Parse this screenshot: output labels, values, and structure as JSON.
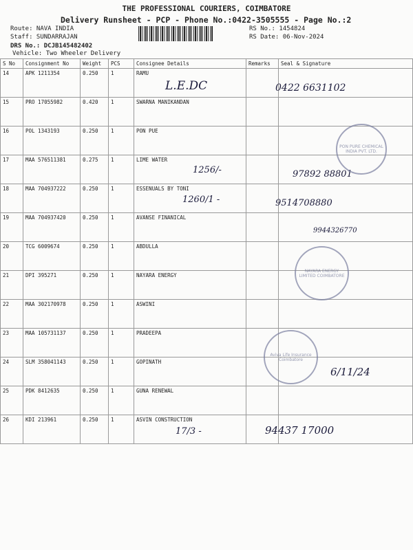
{
  "header": {
    "company": "THE PROFESSIONAL COURIERS, COIMBATORE",
    "subtitle": "Delivery Runsheet - PCP - Phone No.:0422-3505555 - Page No.:2",
    "route": "Route: NAVA INDIA",
    "staff": "Staff: SUNDARRAJAN",
    "drs": "DRS No.: DCJB145482402",
    "vehicle": "Vehicle: Two Wheeler Delivery",
    "rs_no": "RS No.: 1454824",
    "rs_date": "RS Date: 06-Nov-2024"
  },
  "table": {
    "columns": [
      "S No",
      "Consignment No",
      "Weight",
      "PCS",
      "Consignee Details",
      "Remarks",
      "Seal & Signature"
    ],
    "rows": [
      [
        "14",
        "APK 1211354",
        "0.250",
        "1",
        "RAMU"
      ],
      [
        "15",
        "PRO 17055982",
        "0.420",
        "1",
        "SWARNA MANIKANDAN"
      ],
      [
        "16",
        "POL 1343193",
        "0.250",
        "1",
        "PON PUE"
      ],
      [
        "17",
        "MAA 576511381",
        "0.275",
        "1",
        "LIME WATER"
      ],
      [
        "18",
        "MAA 704937222",
        "0.250",
        "1",
        "ESSENUALS BY TONI"
      ],
      [
        "19",
        "MAA 704937420",
        "0.250",
        "1",
        "AVANSE FINANICAL"
      ],
      [
        "20",
        "TCG 6009674",
        "0.250",
        "1",
        "ABDULLA"
      ],
      [
        "21",
        "DPI 395271",
        "0.250",
        "1",
        "NAYARA ENERGY"
      ],
      [
        "22",
        "MAA 302170978",
        "0.250",
        "1",
        "ASWINI"
      ],
      [
        "23",
        "MAA 105731137",
        "0.250",
        "1",
        "PRADEEPA"
      ],
      [
        "24",
        "SLM 358041143",
        "0.250",
        "1",
        "GOPINATH"
      ],
      [
        "25",
        "PDK 8412635",
        "0.250",
        "1",
        "GUNA RENEWAL"
      ],
      [
        "26",
        "KDI 213961",
        "0.250",
        "1",
        "ASVIN CONSTRUCTION"
      ]
    ]
  },
  "handwriting": {
    "r14_note": "L.E.DC",
    "r14_phone": "0422 6631102",
    "r17_note": "1256/-",
    "r17_phone": "97892 88801",
    "r18_note": "1260/1 -",
    "r18_phone": "9514708880",
    "r19_phone": "9944326770",
    "r24_date": "6/11/24",
    "r26_note": "17/3 -",
    "r26_phone": "94437 17000"
  },
  "stamps": {
    "pon_pure": "PON PURE CHEMICAL INDIA PVT. LTD.",
    "nayara": "NAYARA ENERGY LIMITED COIMBATORE",
    "aviva": "Aviva Life Insurance Coimbatore"
  }
}
